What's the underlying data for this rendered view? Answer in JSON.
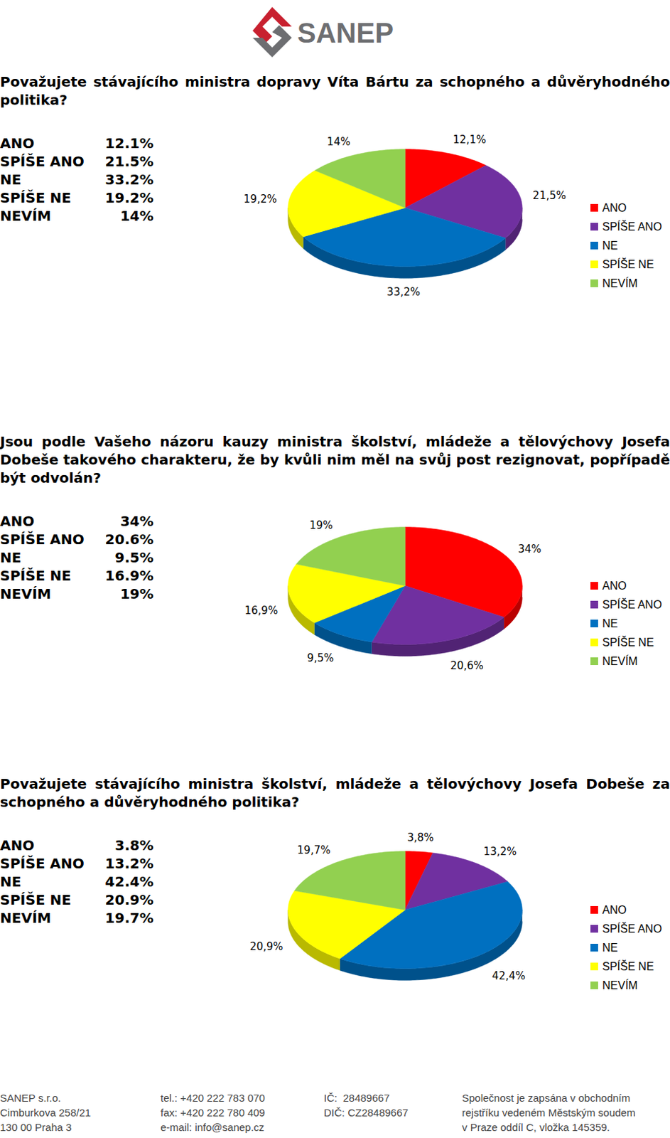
{
  "header": {
    "logo": "SANEP"
  },
  "chart_data": [
    {
      "type": "pie",
      "title": "Považujete stávajícího ministra dopravy Víta Bártu za schopného a důvěryhodného politika?",
      "categories": [
        "ANO",
        "SPÍŠE ANO",
        "NE",
        "SPÍŠE NE",
        "NEVÍM"
      ],
      "values": [
        12.1,
        21.5,
        33.2,
        19.2,
        14
      ],
      "value_labels": [
        "12,1%",
        "21,5%",
        "33,2%",
        "19,2%",
        "14%"
      ],
      "table_labels": [
        "12.1%",
        "21.5%",
        "33.2%",
        "19.2%",
        "14%"
      ],
      "colors": [
        "#ff0000",
        "#7030a0",
        "#0070c0",
        "#ffff00",
        "#92d050"
      ],
      "data_labels": true,
      "legend": "right"
    },
    {
      "type": "pie",
      "title": "Jsou podle Vašeho názoru kauzy ministra školství, mládeže a tělovýchovy Josefa Dobeše takového charakteru, že by kvůli nim měl na svůj post rezignovat, popřípadě být odvolán?",
      "categories": [
        "ANO",
        "SPÍŠE ANO",
        "NE",
        "SPÍŠE NE",
        "NEVÍM"
      ],
      "values": [
        34,
        20.6,
        9.5,
        16.9,
        19
      ],
      "value_labels": [
        "34%",
        "20,6%",
        "9,5%",
        "16,9%",
        "19%"
      ],
      "table_labels": [
        "34%",
        "20.6%",
        "9.5%",
        "16.9%",
        "19%"
      ],
      "colors": [
        "#ff0000",
        "#7030a0",
        "#0070c0",
        "#ffff00",
        "#92d050"
      ],
      "data_labels": true,
      "legend": "right"
    },
    {
      "type": "pie",
      "title": "Považujete stávajícího ministra školství, mládeže a tělovýchovy Josefa Dobeše za schopného a důvěryhodného politika?",
      "categories": [
        "ANO",
        "SPÍŠE ANO",
        "NE",
        "SPÍŠE NE",
        "NEVÍM"
      ],
      "values": [
        3.8,
        13.2,
        42.4,
        20.9,
        19.7
      ],
      "value_labels": [
        "3,8%",
        "13,2%",
        "42,4%",
        "20,9%",
        "19,7%"
      ],
      "table_labels": [
        "3.8%",
        "13.2%",
        "42.4%",
        "20.9%",
        "19.7%"
      ],
      "colors": [
        "#ff0000",
        "#7030a0",
        "#0070c0",
        "#ffff00",
        "#92d050"
      ],
      "data_labels": true,
      "legend": "right"
    }
  ],
  "footer": {
    "columns": [
      [
        "SANEP s.r.o.",
        "Cimburkova 258/21",
        "130 00 Praha 3"
      ],
      [
        "tel.: +420 222 783 070",
        "fax: +420 222 780 409",
        "e-mail: info@sanep.cz"
      ],
      [
        "IČ:  28489667",
        "DIČ: CZ28489667"
      ],
      [
        "Společnost je zapsána v obchodním",
        "rejstříku vedeném Městským soudem",
        "v Praze oddíl C, vložka 145359."
      ]
    ]
  }
}
